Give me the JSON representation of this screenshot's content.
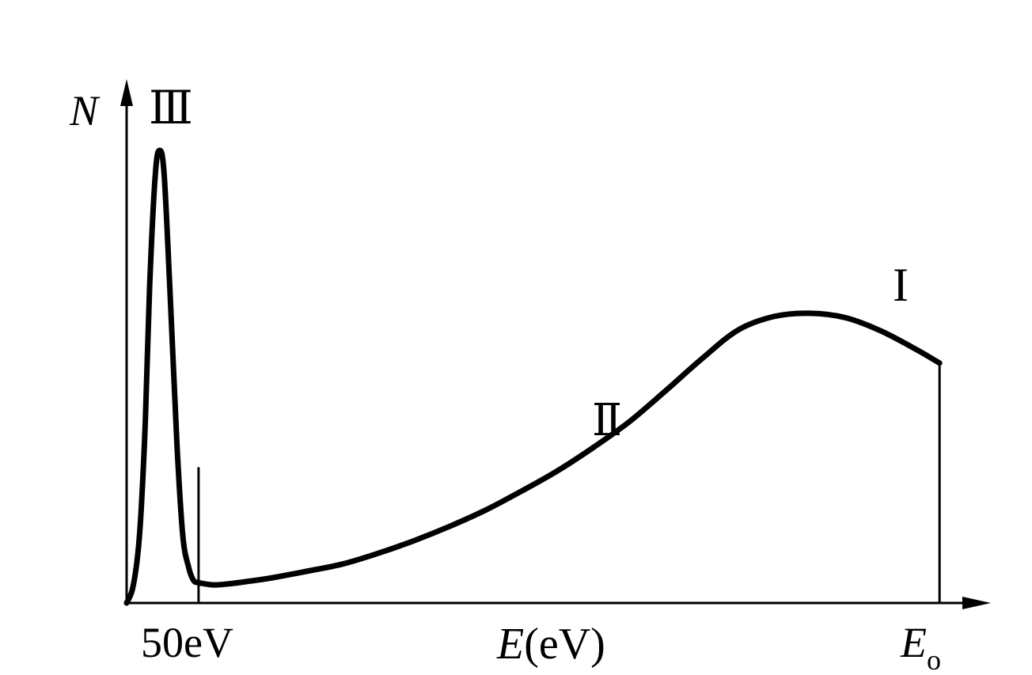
{
  "chart_data": {
    "type": "line",
    "title": "",
    "ylabel": "N",
    "xlabel_var": "E",
    "xlabel_unit": "(eV)",
    "x_tick_left": "50eV",
    "x_tick_right_main": "E",
    "x_tick_right_sub": "o",
    "grid": false,
    "region_labels": [
      {
        "id": "III",
        "text": "Ⅲ"
      },
      {
        "id": "II",
        "text": "Ⅱ"
      },
      {
        "id": "I",
        "text": "I"
      }
    ],
    "series": [
      {
        "x": [
          0,
          0.8,
          1.5,
          2,
          2.6,
          3.2,
          4,
          4.6,
          5.2,
          6,
          7,
          7.8,
          8.6,
          9.3,
          10,
          12,
          14,
          17,
          20,
          25,
          30,
          35,
          40,
          45,
          50,
          55,
          60,
          65,
          70,
          75,
          80,
          85,
          90,
          95,
          100,
          105,
          110,
          113
        ],
        "y": [
          0,
          3,
          10,
          20,
          40,
          70,
          95,
          100,
          95,
          70,
          35,
          15,
          8,
          5,
          4.5,
          4,
          4.2,
          4.8,
          5.5,
          7,
          8.6,
          11,
          13.8,
          17,
          20.6,
          24.8,
          29.3,
          34.5,
          40.2,
          47,
          54,
          60.3,
          63.3,
          64,
          63,
          60,
          55.8,
          53
        ]
      }
    ],
    "ylim": [
      0,
      112
    ],
    "xlim": [
      0,
      120
    ],
    "marker_lines": [
      {
        "x": 10,
        "y": 30
      },
      {
        "x": 113,
        "y": 53
      }
    ]
  }
}
